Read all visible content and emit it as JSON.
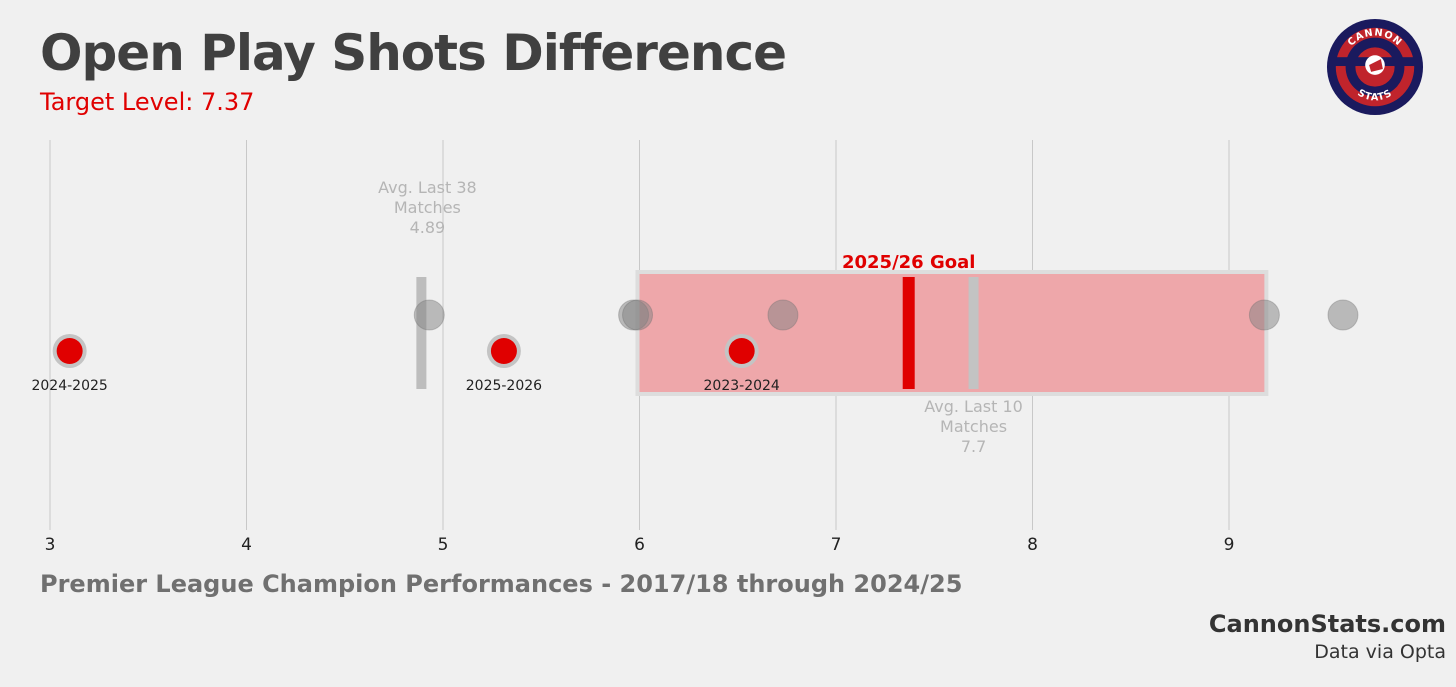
{
  "header": {
    "title": "Open Play Shots Difference",
    "subtitle": "Target Level: 7.37"
  },
  "footer": {
    "caption": "Premier League Champion Performances - 2017/18 through 2024/25",
    "site": "CannonStats.com",
    "source": "Data via Opta"
  },
  "logo": {
    "top_text": "CANNON",
    "bottom_text": "STATS"
  },
  "colors": {
    "background": "#f0f0f0",
    "accent_red": "#e00000",
    "goal_band": "#eea7aa",
    "grey_point": "#999999",
    "grid": "#c8c8c8",
    "logo_navy": "#1a1a5e",
    "logo_red": "#c0242c"
  },
  "chart_data": {
    "type": "scatter",
    "title": "Open Play Shots Difference",
    "xlim": [
      3,
      9.95
    ],
    "x_ticks": [
      "3",
      "4",
      "5",
      "6",
      "7",
      "8",
      "9"
    ],
    "grid": true,
    "goal_range": {
      "from": 6.0,
      "to": 9.18
    },
    "goal_line": {
      "x": 7.37,
      "label": "2025/26 Goal"
    },
    "reference_lines": [
      {
        "name": "avg_last_38",
        "x": 4.89,
        "label_lines": [
          "Avg. Last 38",
          "Matches",
          "4.89"
        ]
      },
      {
        "name": "avg_last_10",
        "x": 7.7,
        "label_lines": [
          "Avg. Last 10",
          "Matches",
          "7.7"
        ]
      }
    ],
    "champion_points": [
      {
        "x": 4.93
      },
      {
        "x": 5.97
      },
      {
        "x": 5.99
      },
      {
        "x": 6.73
      },
      {
        "x": 9.18
      },
      {
        "x": 9.58
      }
    ],
    "highlighted_points": [
      {
        "x": 3.1,
        "label": "2024-2025"
      },
      {
        "x": 5.31,
        "label": "2025-2026"
      },
      {
        "x": 6.52,
        "label": "2023-2024"
      }
    ]
  }
}
